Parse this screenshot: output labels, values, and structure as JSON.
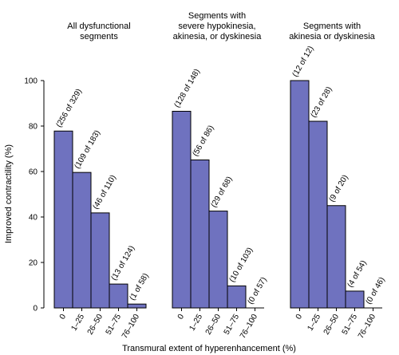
{
  "chart_data": {
    "type": "bar",
    "ylabel": "Improved contractility (%)",
    "xlabel": "Transmural extent of hyperenhancement (%)",
    "ylim": [
      0,
      100
    ],
    "yticks": [
      0,
      20,
      40,
      60,
      80,
      100
    ],
    "categories": [
      "0",
      "1–25",
      "26–50",
      "51–75",
      "76–100"
    ],
    "bar_color": "#6f72bf",
    "grid": false,
    "panels": [
      {
        "title_lines": [
          "All dysfunctional",
          "segments"
        ],
        "values": [
          77.8,
          59.6,
          41.8,
          10.5,
          1.7
        ],
        "labels": [
          "(256 of 329)",
          "(109 of 183)",
          "(46 of 110)",
          "(13 of 124)",
          "(1 of 58)"
        ]
      },
      {
        "title_lines": [
          "Segments with",
          "severe hypokinesia,",
          "akinesia, or dyskinesia"
        ],
        "values": [
          86.5,
          65.1,
          42.6,
          9.7,
          0
        ],
        "labels": [
          "(128 of 148)",
          "(56 of 86)",
          "(29 of 68)",
          "(10 of 103)",
          "(0 of 57)"
        ]
      },
      {
        "title_lines": [
          "Segments with",
          "akinesia or dyskinesia"
        ],
        "values": [
          100,
          82.1,
          45,
          7.4,
          0
        ],
        "labels": [
          "(12 of 12)",
          "(23 of 28)",
          "(9 of 20)",
          "(4 of 54)",
          "(0 of 46)"
        ]
      }
    ]
  }
}
